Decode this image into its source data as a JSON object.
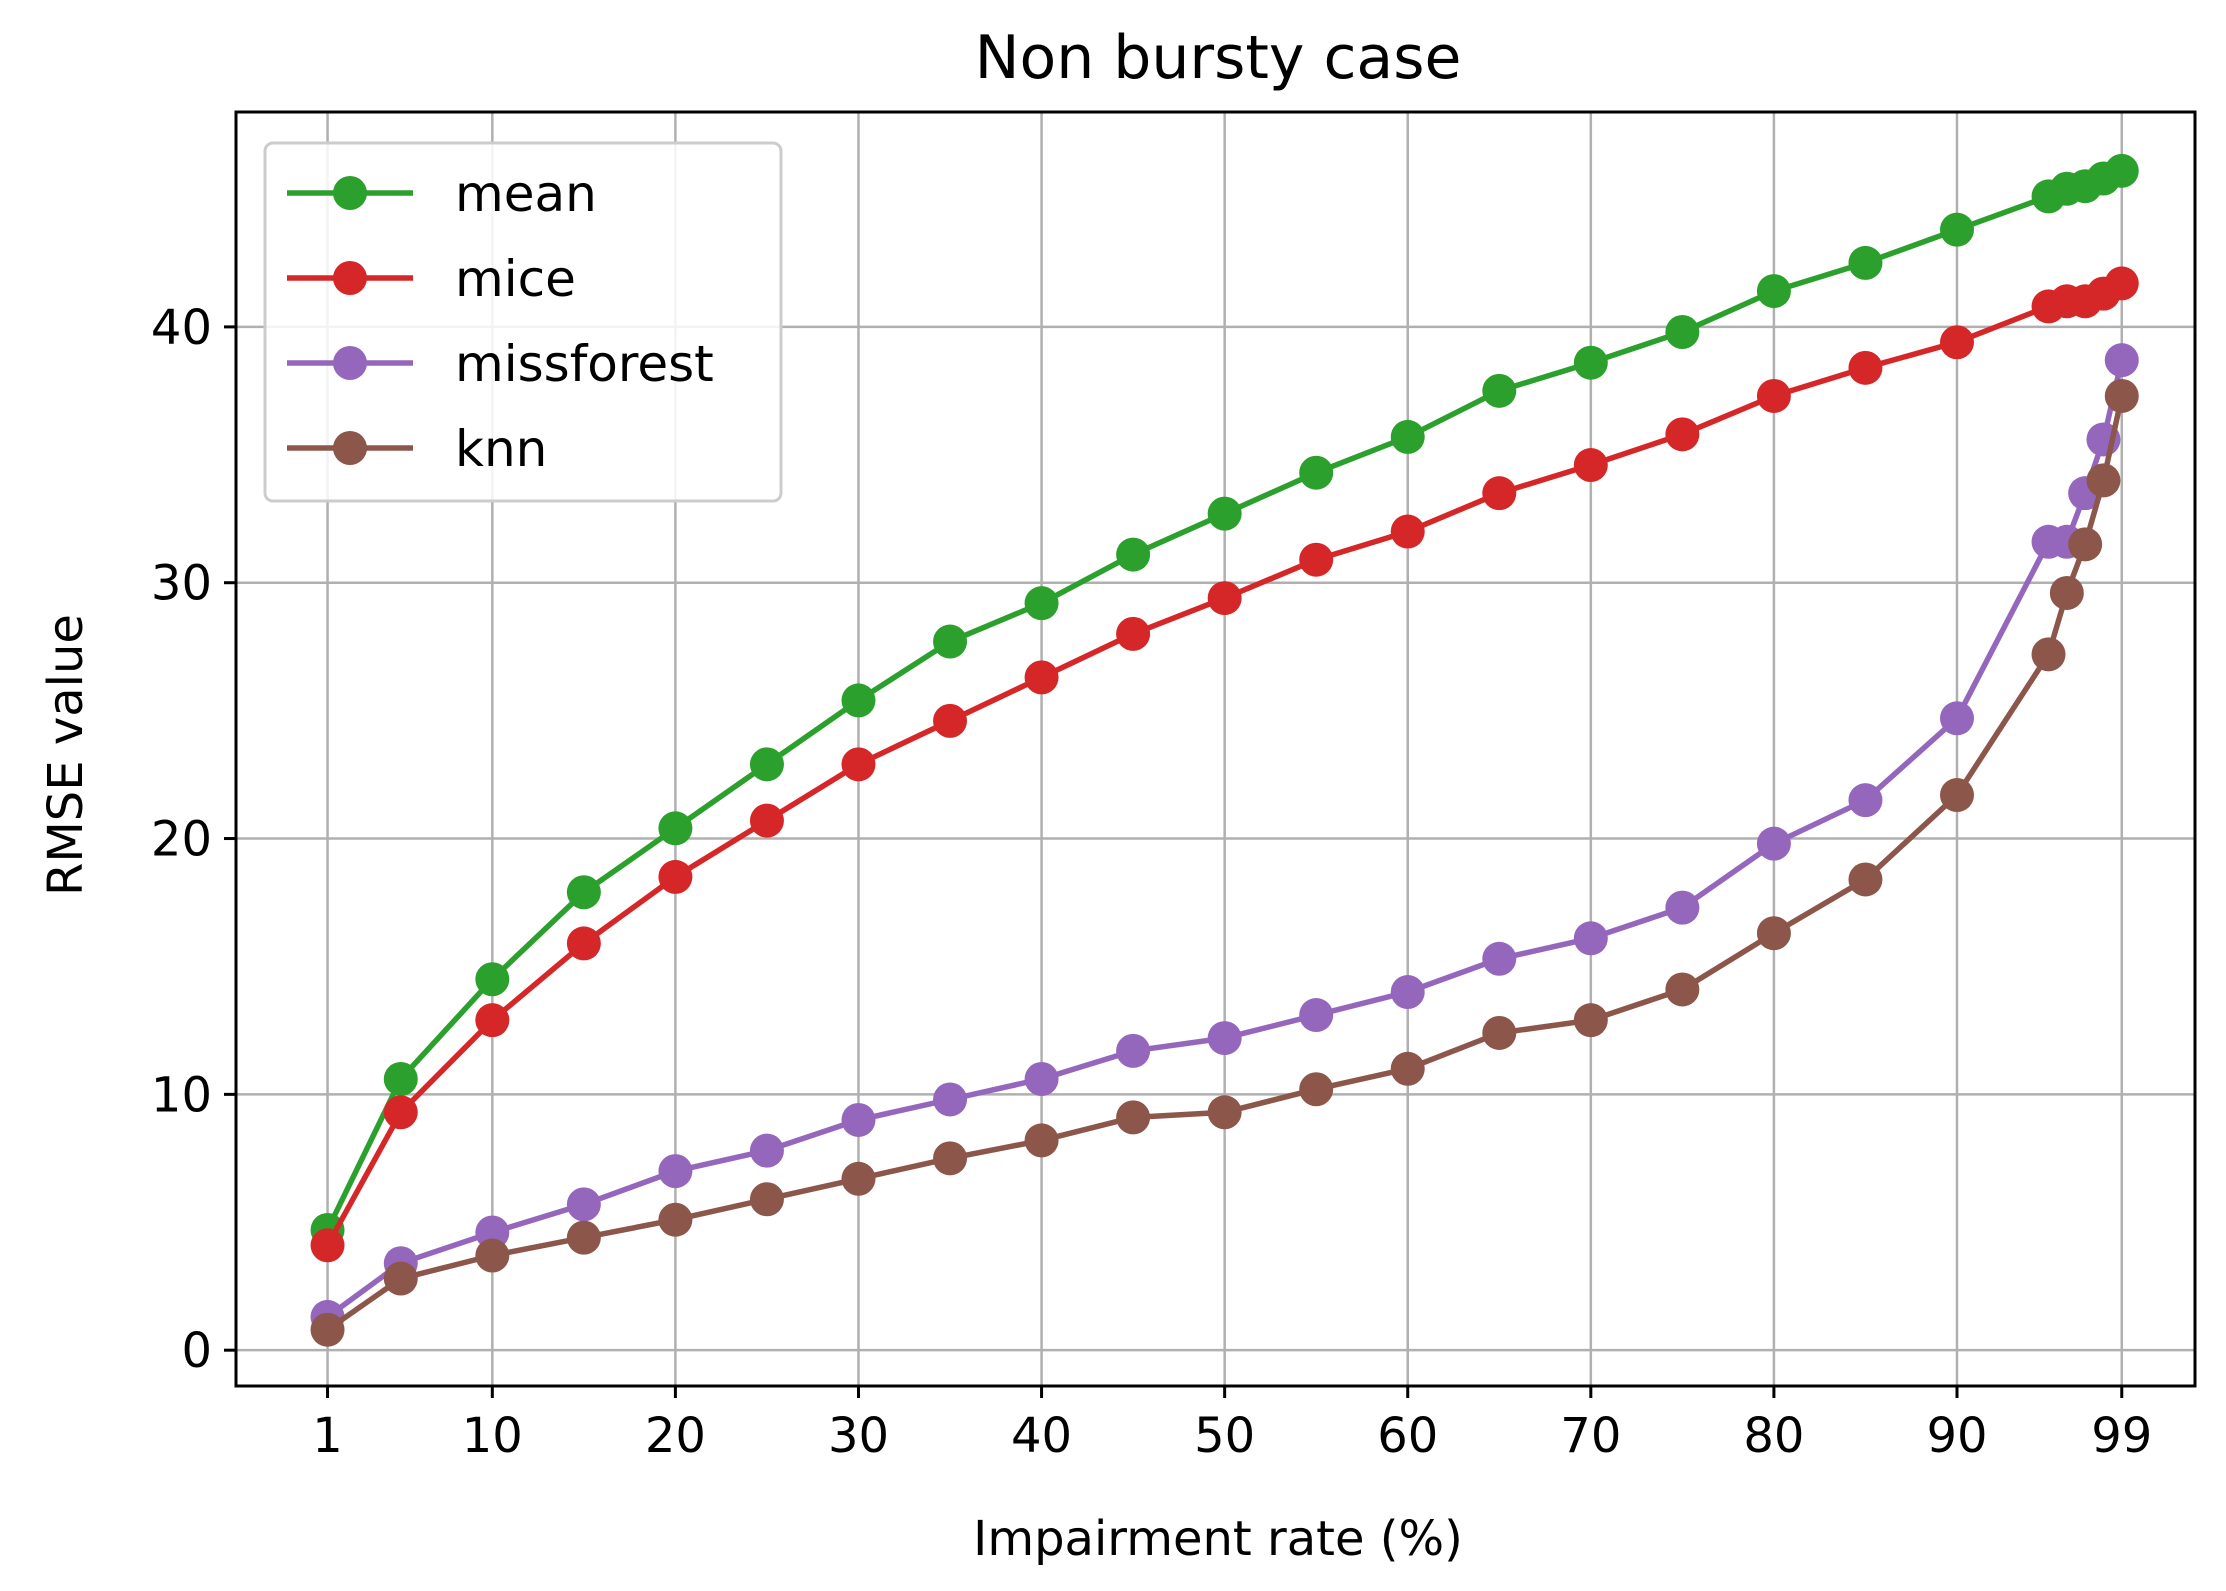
{
  "chart_data": {
    "type": "line",
    "title": "Non bursty case",
    "xlabel": "Impairment rate (%)",
    "ylabel": "RMSE value",
    "xlim": [
      -4,
      103
    ],
    "ylim": [
      -1.4,
      48.4
    ],
    "xticks": [
      1,
      10,
      20,
      30,
      40,
      50,
      60,
      70,
      80,
      90,
      99
    ],
    "xtick_labels": [
      "1",
      "10",
      "20",
      "30",
      "40",
      "50",
      "60",
      "70",
      "80",
      "90",
      "99"
    ],
    "yticks": [
      0,
      10,
      20,
      30,
      40
    ],
    "ytick_labels": [
      "0",
      "10",
      "20",
      "30",
      "40"
    ],
    "grid": true,
    "legend_position": "upper-left",
    "x": [
      1,
      5,
      10,
      15,
      20,
      25,
      30,
      35,
      40,
      45,
      50,
      55,
      60,
      65,
      70,
      75,
      80,
      85,
      90,
      95,
      96,
      97,
      98,
      99
    ],
    "series": [
      {
        "name": "mean",
        "color": "#2ca02c",
        "values": [
          4.7,
          10.6,
          14.5,
          17.9,
          20.4,
          22.9,
          25.4,
          27.7,
          29.2,
          31.1,
          32.7,
          34.3,
          35.7,
          37.5,
          38.6,
          39.8,
          41.4,
          42.5,
          43.8,
          45.1,
          45.4,
          45.5,
          45.8,
          46.1
        ]
      },
      {
        "name": "mice",
        "color": "#d62728",
        "values": [
          4.1,
          9.3,
          12.9,
          15.9,
          18.5,
          20.7,
          22.9,
          24.6,
          26.3,
          28.0,
          29.4,
          30.9,
          32.0,
          33.5,
          34.6,
          35.8,
          37.3,
          38.4,
          39.4,
          40.8,
          41.0,
          41.0,
          41.3,
          41.7
        ]
      },
      {
        "name": "missforest",
        "color": "#9467bd",
        "values": [
          1.3,
          3.4,
          4.6,
          5.7,
          7.0,
          7.8,
          9.0,
          9.8,
          10.6,
          11.7,
          12.2,
          13.1,
          14.0,
          15.3,
          16.1,
          17.3,
          19.8,
          21.5,
          24.7,
          31.6,
          31.6,
          33.5,
          35.6,
          38.7
        ]
      },
      {
        "name": "knn",
        "color": "#8c564b",
        "values": [
          0.8,
          2.8,
          3.7,
          4.4,
          5.1,
          5.9,
          6.7,
          7.5,
          8.2,
          9.1,
          9.3,
          10.2,
          11.0,
          12.4,
          12.9,
          14.1,
          16.3,
          18.4,
          21.7,
          27.2,
          29.6,
          31.5,
          34.0,
          37.3
        ]
      }
    ]
  }
}
